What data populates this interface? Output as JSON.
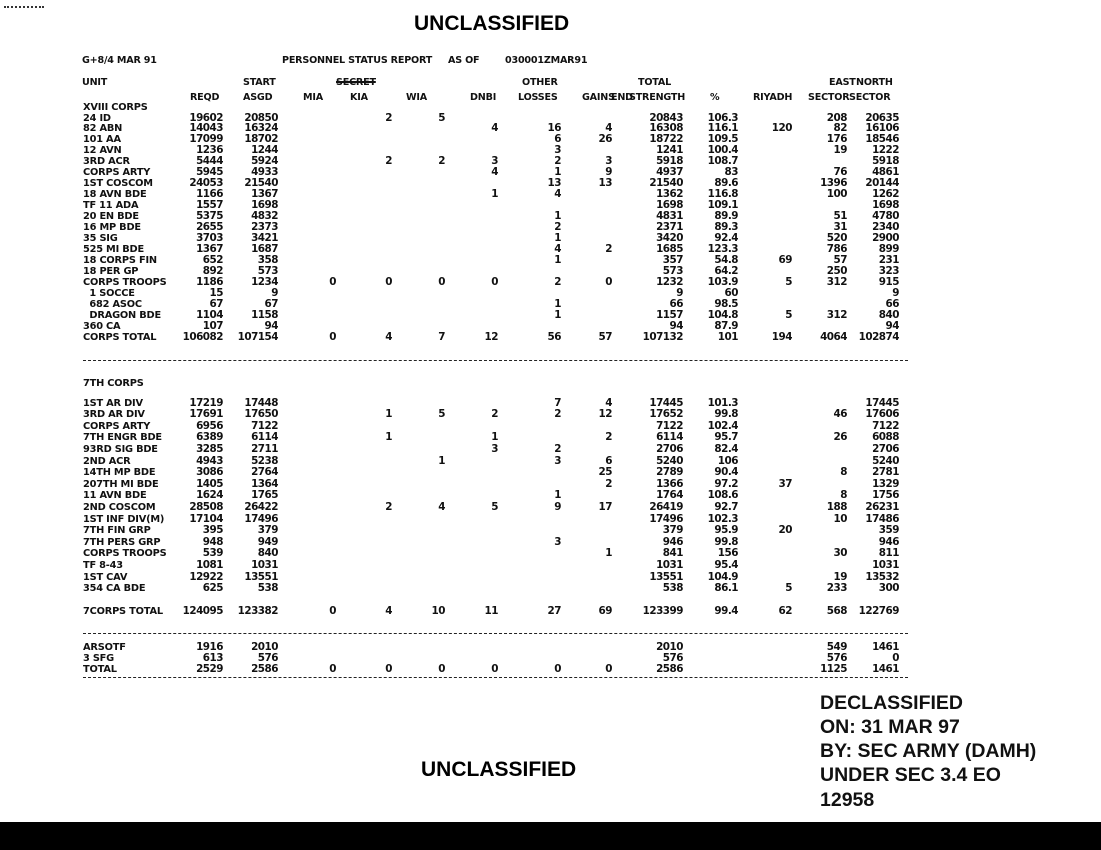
{
  "marking_top": "UNCLASSIFIED",
  "marking_bottom": "UNCLASSIFIED",
  "doc_ref": "G+8/4 MAR 91",
  "report_title": "PERSONNEL STATUS REPORT",
  "as_of_label": "AS OF",
  "as_of": "030001ZMAR91",
  "headers": {
    "unit": "UNIT",
    "reqd": "REQD",
    "start": "START",
    "asgd": "ASGD",
    "mia": "MIA",
    "struck_marking": "SECRET",
    "kia": "KIA",
    "wia": "WIA",
    "dnbi": "DNBI",
    "other": "OTHER",
    "losses": "LOSSES",
    "gains": "GAINS",
    "end": "END",
    "total": "TOTAL",
    "strength": "STRENGTH",
    "pct": "%",
    "riyadh": "RIYADH",
    "east": "EAST",
    "east_sector": "SECTOR",
    "north": "NORTH",
    "north_sector": "SECTOR"
  },
  "sections": [
    {
      "title": "XVIII CORPS",
      "rows": [
        {
          "unit": "24 ID",
          "values": [
            "19602",
            "20850",
            "",
            "2",
            "5",
            "",
            "",
            "",
            "20843",
            "106.3",
            "",
            "208",
            "20635"
          ]
        },
        {
          "unit": "82 ABN",
          "values": [
            "14043",
            "16324",
            "",
            "",
            "",
            "4",
            "16",
            "4",
            "16308",
            "116.1",
            "120",
            "82",
            "16106"
          ]
        },
        {
          "unit": "101 AA",
          "values": [
            "17099",
            "18702",
            "",
            "",
            "",
            "",
            "6",
            "26",
            "18722",
            "109.5",
            "",
            "176",
            "18546"
          ]
        },
        {
          "unit": "12 AVN",
          "values": [
            "1236",
            "1244",
            "",
            "",
            "",
            "",
            "3",
            "",
            "1241",
            "100.4",
            "",
            "19",
            "1222"
          ]
        },
        {
          "unit": "3RD ACR",
          "values": [
            "5444",
            "5924",
            "",
            "2",
            "2",
            "3",
            "2",
            "3",
            "5918",
            "108.7",
            "",
            "",
            "5918"
          ]
        },
        {
          "unit": "CORPS ARTY",
          "values": [
            "5945",
            "4933",
            "",
            "",
            "",
            "4",
            "1",
            "9",
            "4937",
            "83",
            "",
            "76",
            "4861"
          ]
        },
        {
          "unit": "1ST COSCOM",
          "values": [
            "24053",
            "21540",
            "",
            "",
            "",
            "",
            "13",
            "13",
            "21540",
            "89.6",
            "",
            "1396",
            "20144"
          ]
        },
        {
          "unit": "18 AVN BDE",
          "values": [
            "1166",
            "1367",
            "",
            "",
            "",
            "1",
            "4",
            "",
            "1362",
            "116.8",
            "",
            "100",
            "1262"
          ]
        },
        {
          "unit": "TF 11 ADA",
          "values": [
            "1557",
            "1698",
            "",
            "",
            "",
            "",
            "",
            "",
            "1698",
            "109.1",
            "",
            "",
            "1698"
          ]
        },
        {
          "unit": "20 EN BDE",
          "values": [
            "5375",
            "4832",
            "",
            "",
            "",
            "",
            "1",
            "",
            "4831",
            "89.9",
            "",
            "51",
            "4780"
          ]
        },
        {
          "unit": "16 MP BDE",
          "values": [
            "2655",
            "2373",
            "",
            "",
            "",
            "",
            "2",
            "",
            "2371",
            "89.3",
            "",
            "31",
            "2340"
          ]
        },
        {
          "unit": "35 SIG",
          "values": [
            "3703",
            "3421",
            "",
            "",
            "",
            "",
            "1",
            "",
            "3420",
            "92.4",
            "",
            "520",
            "2900"
          ]
        },
        {
          "unit": "525 MI BDE",
          "values": [
            "1367",
            "1687",
            "",
            "",
            "",
            "",
            "4",
            "2",
            "1685",
            "123.3",
            "",
            "786",
            "899"
          ]
        },
        {
          "unit": "18 CORPS FIN",
          "values": [
            "652",
            "358",
            "",
            "",
            "",
            "",
            "1",
            "",
            "357",
            "54.8",
            "69",
            "57",
            "231"
          ]
        },
        {
          "unit": "18 PER GP",
          "values": [
            "892",
            "573",
            "",
            "",
            "",
            "",
            "",
            "",
            "573",
            "64.2",
            "",
            "250",
            "323"
          ]
        },
        {
          "unit": "CORPS TROOPS",
          "values": [
            "1186",
            "1234",
            "0",
            "0",
            "0",
            "0",
            "2",
            "0",
            "1232",
            "103.9",
            "5",
            "312",
            "915"
          ]
        },
        {
          "unit": "  1 SOCCE",
          "values": [
            "15",
            "9",
            "",
            "",
            "",
            "",
            "",
            "",
            "9",
            "60",
            "",
            "",
            "9"
          ]
        },
        {
          "unit": "  682 ASOC",
          "values": [
            "67",
            "67",
            "",
            "",
            "",
            "",
            "1",
            "",
            "66",
            "98.5",
            "",
            "",
            "66"
          ]
        },
        {
          "unit": "  DRAGON BDE",
          "values": [
            "1104",
            "1158",
            "",
            "",
            "",
            "",
            "1",
            "",
            "1157",
            "104.8",
            "5",
            "312",
            "840"
          ]
        },
        {
          "unit": "360 CA",
          "values": [
            "107",
            "94",
            "",
            "",
            "",
            "",
            "",
            "",
            "94",
            "87.9",
            "",
            "",
            "94"
          ]
        },
        {
          "unit": "CORPS TOTAL",
          "values": [
            "106082",
            "107154",
            "0",
            "4",
            "7",
            "12",
            "56",
            "57",
            "107132",
            "101",
            "194",
            "4064",
            "102874"
          ]
        }
      ]
    },
    {
      "title": "7TH CORPS",
      "rows": [
        {
          "unit": "1ST AR DIV",
          "values": [
            "17219",
            "17448",
            "",
            "",
            "",
            "",
            "7",
            "4",
            "17445",
            "101.3",
            "",
            "",
            "17445"
          ]
        },
        {
          "unit": "3RD AR DIV",
          "values": [
            "17691",
            "17650",
            "",
            "1",
            "5",
            "2",
            "2",
            "12",
            "17652",
            "99.8",
            "",
            "46",
            "17606"
          ]
        },
        {
          "unit": "CORPS ARTY",
          "values": [
            "6956",
            "7122",
            "",
            "",
            "",
            "",
            "",
            "",
            "7122",
            "102.4",
            "",
            "",
            "7122"
          ]
        },
        {
          "unit": "7TH ENGR BDE",
          "values": [
            "6389",
            "6114",
            "",
            "1",
            "",
            "1",
            "",
            "2",
            "6114",
            "95.7",
            "",
            "26",
            "6088"
          ]
        },
        {
          "unit": "93RD SIG BDE",
          "values": [
            "3285",
            "2711",
            "",
            "",
            "",
            "3",
            "2",
            "",
            "2706",
            "82.4",
            "",
            "",
            "2706"
          ]
        },
        {
          "unit": "2ND ACR",
          "values": [
            "4943",
            "5238",
            "",
            "",
            "1",
            "",
            "3",
            "6",
            "5240",
            "106",
            "",
            "",
            "5240"
          ]
        },
        {
          "unit": "14TH MP BDE",
          "values": [
            "3086",
            "2764",
            "",
            "",
            "",
            "",
            "",
            "25",
            "2789",
            "90.4",
            "",
            "8",
            "2781"
          ]
        },
        {
          "unit": "207TH MI BDE",
          "values": [
            "1405",
            "1364",
            "",
            "",
            "",
            "",
            "",
            "2",
            "1366",
            "97.2",
            "37",
            "",
            "1329"
          ]
        },
        {
          "unit": "11 AVN BDE",
          "values": [
            "1624",
            "1765",
            "",
            "",
            "",
            "",
            "1",
            "",
            "1764",
            "108.6",
            "",
            "8",
            "1756"
          ]
        },
        {
          "unit": "2ND COSCOM",
          "values": [
            "28508",
            "26422",
            "",
            "2",
            "4",
            "5",
            "9",
            "17",
            "26419",
            "92.7",
            "",
            "188",
            "26231"
          ]
        },
        {
          "unit": "1ST INF DIV(M)",
          "values": [
            "17104",
            "17496",
            "",
            "",
            "",
            "",
            "",
            "",
            "17496",
            "102.3",
            "",
            "10",
            "17486"
          ]
        },
        {
          "unit": "7TH FIN GRP",
          "values": [
            "395",
            "379",
            "",
            "",
            "",
            "",
            "",
            "",
            "379",
            "95.9",
            "20",
            "",
            "359"
          ]
        },
        {
          "unit": "7TH PERS GRP",
          "values": [
            "948",
            "949",
            "",
            "",
            "",
            "",
            "3",
            "",
            "946",
            "99.8",
            "",
            "",
            "946"
          ]
        },
        {
          "unit": "CORPS TROOPS",
          "values": [
            "539",
            "840",
            "",
            "",
            "",
            "",
            "",
            "1",
            "841",
            "156",
            "",
            "30",
            "811"
          ]
        },
        {
          "unit": "TF 8-43",
          "values": [
            "1081",
            "1031",
            "",
            "",
            "",
            "",
            "",
            "",
            "1031",
            "95.4",
            "",
            "",
            "1031"
          ]
        },
        {
          "unit": "1ST CAV",
          "values": [
            "12922",
            "13551",
            "",
            "",
            "",
            "",
            "",
            "",
            "13551",
            "104.9",
            "",
            "19",
            "13532"
          ]
        },
        {
          "unit": "354 CA BDE",
          "values": [
            "625",
            "538",
            "",
            "",
            "",
            "",
            "",
            "",
            "538",
            "86.1",
            "5",
            "233",
            "300"
          ]
        }
      ],
      "total": {
        "unit": "7CORPS TOTAL",
        "values": [
          "124095",
          "123382",
          "0",
          "4",
          "10",
          "11",
          "27",
          "69",
          "123399",
          "99.4",
          "62",
          "568",
          "122769"
        ]
      }
    },
    {
      "title": "",
      "rows": [
        {
          "unit": "ARSOTF",
          "values": [
            "1916",
            "2010",
            "",
            "",
            "",
            "",
            "",
            "",
            "2010",
            "",
            "",
            "549",
            "1461"
          ]
        },
        {
          "unit": "3 SFG",
          "values": [
            "613",
            "576",
            "",
            "",
            "",
            "",
            "",
            "",
            "576",
            "",
            "",
            "576",
            "0"
          ]
        },
        {
          "unit": "TOTAL",
          "values": [
            "2529",
            "2586",
            "0",
            "0",
            "0",
            "0",
            "0",
            "0",
            "2586",
            "",
            "",
            "1125",
            "1461"
          ]
        }
      ]
    }
  ],
  "declassification": [
    "DECLASSIFIED",
    "ON: 31 MAR 97",
    "BY: SEC ARMY (DAMH)",
    "UNDER SEC 3.4 EO",
    "12958"
  ]
}
